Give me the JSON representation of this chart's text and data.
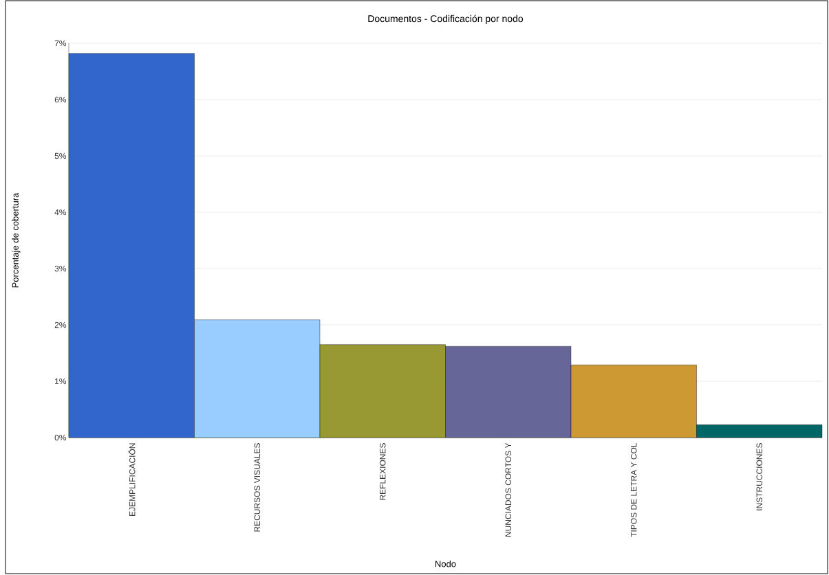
{
  "chart_data": {
    "type": "bar",
    "title": "Documentos - Codificación por nodo",
    "xlabel": "Nodo",
    "ylabel": "Porcentaje de cobertura",
    "categories": [
      "EJEMPLIFICACIÓN",
      "RECURSOS VISUALES",
      "REFLEXIONES",
      "NUNCIADOS CORTOS Y",
      "TIPOS DE LETRA Y COL",
      "INSTRUCCIONES"
    ],
    "values": [
      6.82,
      2.09,
      1.65,
      1.62,
      1.29,
      0.23
    ],
    "colors": [
      "#3366cc",
      "#99ccff",
      "#999933",
      "#666699",
      "#cc9933",
      "#006666"
    ],
    "ylim": [
      0,
      7
    ],
    "yticks": [
      {
        "value": 0,
        "label": "0%"
      },
      {
        "value": 1,
        "label": "1%"
      },
      {
        "value": 2,
        "label": "2%"
      },
      {
        "value": 3,
        "label": "3%"
      },
      {
        "value": 4,
        "label": "4%"
      },
      {
        "value": 5,
        "label": "5%"
      },
      {
        "value": 6,
        "label": "6%"
      },
      {
        "value": 7,
        "label": "7%"
      }
    ],
    "grid": "y"
  }
}
